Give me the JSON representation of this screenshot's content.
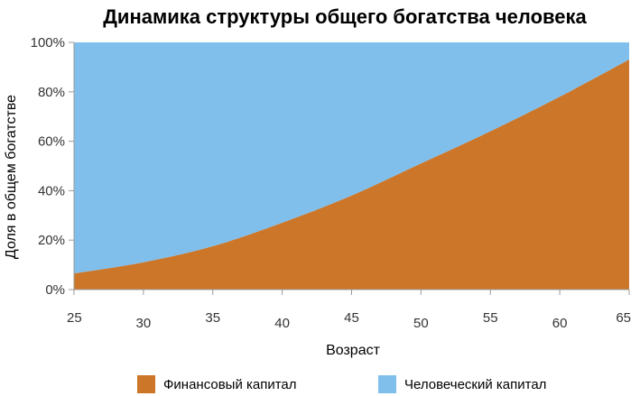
{
  "chart_data": {
    "type": "area",
    "stacked": true,
    "title": "Динамика структуры общего богатства человека",
    "xlabel": "Возраст",
    "ylabel": "Доля в общем богатстве",
    "x": [
      25,
      30,
      35,
      40,
      45,
      50,
      55,
      60,
      65
    ],
    "xlim": [
      25,
      65
    ],
    "ylim": [
      0,
      100
    ],
    "yticks": [
      "0%",
      "20%",
      "40%",
      "60%",
      "80%",
      "100%"
    ],
    "xticks": [
      "25",
      "30",
      "35",
      "40",
      "45",
      "50",
      "55",
      "60",
      "65"
    ],
    "series": [
      {
        "name": "Финансовый капитал",
        "color": "#cc7629",
        "values": [
          6.5,
          11,
          17.5,
          27,
          38,
          51,
          64,
          78,
          93
        ]
      },
      {
        "name": "Человеческий капитал",
        "color": "#80bfec",
        "values": [
          93.5,
          89,
          82.5,
          73,
          62,
          49,
          36,
          22,
          7
        ]
      }
    ],
    "grid": false,
    "legend_position": "bottom"
  }
}
